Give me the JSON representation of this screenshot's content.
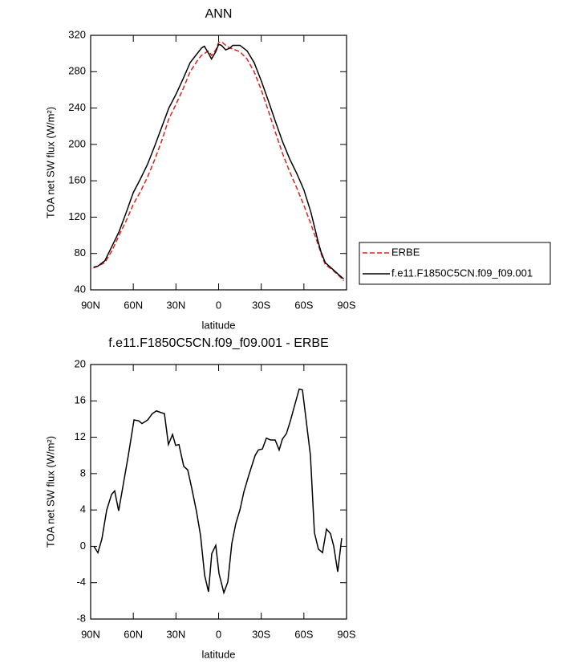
{
  "chart_data": [
    {
      "type": "line",
      "title": "ANN",
      "xlabel": "latitude",
      "ylabel": "TOA net SW flux (W/m²)",
      "x": [
        88,
        85,
        80,
        75,
        70,
        65,
        60,
        55,
        50,
        45,
        40,
        35,
        30,
        25,
        20,
        15,
        12,
        10,
        7,
        5,
        2,
        0,
        -2,
        -5,
        -8,
        -10,
        -15,
        -20,
        -25,
        -30,
        -35,
        -40,
        -45,
        -50,
        -55,
        -60,
        -65,
        -70,
        -72,
        -75,
        -80,
        -85,
        -88
      ],
      "series": [
        {
          "name": "ERBE",
          "color": "#e0201c",
          "style": "dashed",
          "values": [
            64,
            66,
            70,
            83,
            100,
            116,
            134,
            148,
            164,
            183,
            204,
            228,
            244,
            261,
            280,
            292,
            298,
            300,
            303,
            298,
            304,
            312,
            313,
            309,
            306,
            305,
            302,
            294,
            280,
            260,
            237,
            213,
            190,
            170,
            152,
            133,
            112,
            90,
            80,
            68,
            62,
            55,
            50
          ]
        },
        {
          "name": "f.e11.F1850C5CN.f09_f09.001",
          "color": "#000000",
          "style": "solid",
          "values": [
            65,
            66,
            72,
            88,
            104,
            125,
            147,
            162,
            178,
            198,
            219,
            240,
            255,
            272,
            290,
            300,
            306,
            308,
            300,
            294,
            302,
            310,
            309,
            304,
            306,
            309,
            309,
            303,
            290,
            270,
            248,
            225,
            203,
            184,
            168,
            150,
            125,
            93,
            82,
            70,
            63,
            56,
            52
          ]
        }
      ],
      "xlim": [
        90,
        -90
      ],
      "xticks": [
        {
          "value": 90,
          "label": "90N"
        },
        {
          "value": 60,
          "label": "60N"
        },
        {
          "value": 30,
          "label": "30N"
        },
        0,
        {
          "value": -30,
          "label": "30S"
        },
        {
          "value": -60,
          "label": "60S"
        },
        {
          "value": -90,
          "label": "90S"
        }
      ],
      "ylim": [
        40,
        320
      ],
      "yticks": [
        40,
        80,
        120,
        160,
        200,
        240,
        280,
        320
      ],
      "legend": "right"
    },
    {
      "type": "line",
      "title": "f.e11.F1850C5CN.f09_f09.001 - ERBE",
      "xlabel": "latitude",
      "ylabel": "TOA net SW flux (W/m²)",
      "x": [
        87.7,
        84.9,
        82.1,
        78.7,
        75.3,
        73.1,
        70.3,
        67.4,
        63.5,
        59.5,
        56.1,
        53.9,
        49.9,
        46.6,
        43.7,
        40.3,
        38.1,
        35.3,
        32.4,
        30.2,
        27.9,
        24.5,
        21.7,
        18.9,
        15.5,
        12.7,
        9.8,
        7.1,
        4.8,
        2.0,
        -0.3,
        -3.7,
        -6.5,
        -9.3,
        -12.1,
        -15.0,
        -17.8,
        -21.2,
        -25.7,
        -28.0,
        -30.8,
        -33.6,
        -36.5,
        -39.8,
        -42.6,
        -44.9,
        -47.7,
        -50.5,
        -53.3,
        -56.7,
        -59.0,
        -61.8,
        -64.6,
        -67.4,
        -70.2,
        -73.1,
        -75.9,
        -78.7,
        -81.0,
        -83.8,
        -86.6
      ],
      "series": [
        {
          "color": "#000000",
          "style": "solid",
          "values": [
            0,
            -0.7,
            0.8,
            4,
            5.7,
            6.1,
            3.9,
            6.5,
            10,
            13.9,
            13.8,
            13.5,
            13.9,
            14.6,
            14.9,
            14.7,
            14.6,
            11.2,
            12.3,
            11.1,
            11.2,
            8.8,
            8.4,
            6.4,
            3.8,
            1.2,
            -3.2,
            -5,
            -0.8,
            0.1,
            -3,
            -5.1,
            -3.9,
            0.3,
            2.5,
            4,
            6,
            7.8,
            10,
            10.6,
            10.7,
            11.9,
            11.7,
            11.7,
            10.6,
            11.8,
            12.4,
            13.8,
            15.4,
            17.3,
            17.2,
            13.6,
            10,
            1.5,
            -0.3,
            -0.7,
            1.9,
            1.4,
            0,
            -2.8,
            0.9
          ]
        }
      ],
      "xlim": [
        90,
        -90
      ],
      "xticks": [
        {
          "value": 90,
          "label": "90N"
        },
        {
          "value": 60,
          "label": "60N"
        },
        {
          "value": 30,
          "label": "30N"
        },
        0,
        {
          "value": -30,
          "label": "30S"
        },
        {
          "value": -60,
          "label": "60S"
        },
        {
          "value": -90,
          "label": "90S"
        }
      ],
      "ylim": [
        -8,
        20
      ],
      "yticks": [
        -8,
        -4,
        0,
        4,
        8,
        12,
        16,
        20
      ]
    }
  ]
}
